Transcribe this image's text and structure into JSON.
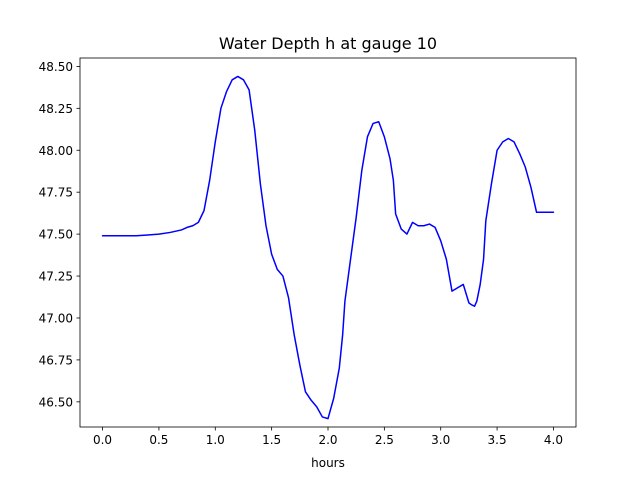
{
  "chart_data": {
    "type": "line",
    "title": "Water Depth h at gauge 10",
    "xlabel": "hours",
    "ylabel": "",
    "xlim": [
      -0.2,
      4.2
    ],
    "ylim": [
      46.35,
      48.55
    ],
    "xticks": [
      0.0,
      0.5,
      1.0,
      1.5,
      2.0,
      2.5,
      3.0,
      3.5,
      4.0
    ],
    "xtick_labels": [
      "0.0",
      "0.5",
      "1.0",
      "1.5",
      "2.0",
      "2.5",
      "3.0",
      "3.5",
      "4.0"
    ],
    "yticks": [
      46.5,
      46.75,
      47.0,
      47.25,
      47.5,
      47.75,
      48.0,
      48.25,
      48.5
    ],
    "ytick_labels": [
      "46.50",
      "46.75",
      "47.00",
      "47.25",
      "47.50",
      "47.75",
      "48.00",
      "48.25",
      "48.50"
    ],
    "grid": false,
    "legend": "none",
    "series": [
      {
        "color": "#0000ff",
        "x": [
          0.0,
          0.1,
          0.2,
          0.3,
          0.4,
          0.5,
          0.6,
          0.7,
          0.75,
          0.8,
          0.85,
          0.9,
          0.95,
          1.0,
          1.05,
          1.1,
          1.15,
          1.2,
          1.25,
          1.3,
          1.35,
          1.4,
          1.45,
          1.5,
          1.55,
          1.6,
          1.65,
          1.7,
          1.75,
          1.8,
          1.85,
          1.9,
          1.95,
          2.0,
          2.05,
          2.1,
          2.13,
          2.15,
          2.2,
          2.25,
          2.3,
          2.35,
          2.4,
          2.45,
          2.5,
          2.55,
          2.58,
          2.6,
          2.65,
          2.7,
          2.75,
          2.8,
          2.85,
          2.9,
          2.95,
          3.0,
          3.05,
          3.1,
          3.15,
          3.2,
          3.25,
          3.27,
          3.3,
          3.32,
          3.35,
          3.38,
          3.4,
          3.45,
          3.5,
          3.55,
          3.6,
          3.65,
          3.7,
          3.75,
          3.8,
          3.85,
          3.9,
          3.95,
          4.0
        ],
        "y": [
          47.49,
          47.49,
          47.49,
          47.49,
          47.495,
          47.5,
          47.51,
          47.525,
          47.54,
          47.55,
          47.57,
          47.64,
          47.82,
          48.05,
          48.25,
          48.35,
          48.42,
          48.44,
          48.42,
          48.36,
          48.12,
          47.8,
          47.55,
          47.38,
          47.29,
          47.25,
          47.12,
          46.9,
          46.72,
          46.56,
          46.51,
          46.47,
          46.41,
          46.4,
          46.52,
          46.7,
          46.9,
          47.1,
          47.35,
          47.6,
          47.88,
          48.08,
          48.16,
          48.17,
          48.08,
          47.95,
          47.82,
          47.62,
          47.53,
          47.5,
          47.57,
          47.55,
          47.55,
          47.56,
          47.54,
          47.46,
          47.35,
          47.16,
          47.18,
          47.2,
          47.09,
          47.08,
          47.07,
          47.1,
          47.2,
          47.35,
          47.58,
          47.8,
          48.0,
          48.05,
          48.07,
          48.05,
          47.98,
          47.9,
          47.78,
          47.63,
          47.63,
          47.63,
          47.63
        ]
      }
    ]
  }
}
